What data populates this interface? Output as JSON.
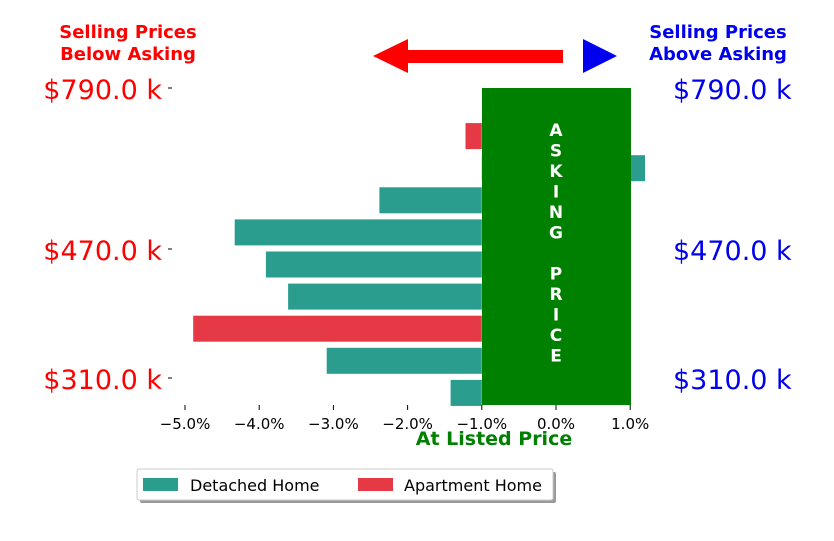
{
  "header": {
    "left_label_line1": "Selling Prices",
    "left_label_line2": "Below Asking",
    "right_label_line1": "Selling Prices",
    "right_label_line2": "Above Asking",
    "left_color": "#ff0000",
    "right_color": "#0000ee"
  },
  "asking_band": {
    "letters": [
      "A",
      "S",
      "K",
      "I",
      "N",
      "G",
      "",
      "P",
      "R",
      "I",
      "C",
      "E"
    ],
    "color": "#008000"
  },
  "chart_data": {
    "type": "bar",
    "orientation": "horizontal",
    "xlabel": "At Listed Price",
    "xlim": [
      -5.4,
      1.0
    ],
    "x_ticks": [
      "−5.0%",
      "−4.0%",
      "−3.0%",
      "−2.0%",
      "−1.0%",
      "0.0%",
      "1.0%"
    ],
    "x_tick_values": [
      -5.0,
      -4.0,
      -3.0,
      -2.0,
      -1.0,
      0.0,
      1.0
    ],
    "bar_baseline": -1.0,
    "y_tick_labels_left": [
      "$790.0 k",
      "$470.0 k",
      "$310.0 k"
    ],
    "y_tick_labels_right": [
      "$790.0 k",
      "$470.0 k",
      "$310.0 k"
    ],
    "y_tick_values": [
      790,
      470,
      310
    ],
    "asking_band_range": [
      -1.0,
      1.0
    ],
    "bars": [
      {
        "price": 790,
        "value": null,
        "type": "none"
      },
      {
        "price": 730,
        "value": -1.22,
        "type": "Apartment Home"
      },
      {
        "price": 690,
        "value": 1.2,
        "type": "Detached Home"
      },
      {
        "price": 630,
        "value": -2.38,
        "type": "Detached Home"
      },
      {
        "price": 570,
        "value": -4.33,
        "type": "Detached Home"
      },
      {
        "price": 470,
        "value": -3.91,
        "type": "Detached Home"
      },
      {
        "price": 420,
        "value": -3.61,
        "type": "Detached Home"
      },
      {
        "price": 390,
        "value": -4.89,
        "type": "Apartment Home"
      },
      {
        "price": 350,
        "value": -3.09,
        "type": "Detached Home"
      },
      {
        "price": 310,
        "value": -1.42,
        "type": "Detached Home"
      }
    ],
    "series": [
      {
        "name": "Detached Home",
        "color": "#2a9d8f"
      },
      {
        "name": "Apartment Home",
        "color": "#e63946"
      }
    ],
    "legend": "bottom-center"
  }
}
